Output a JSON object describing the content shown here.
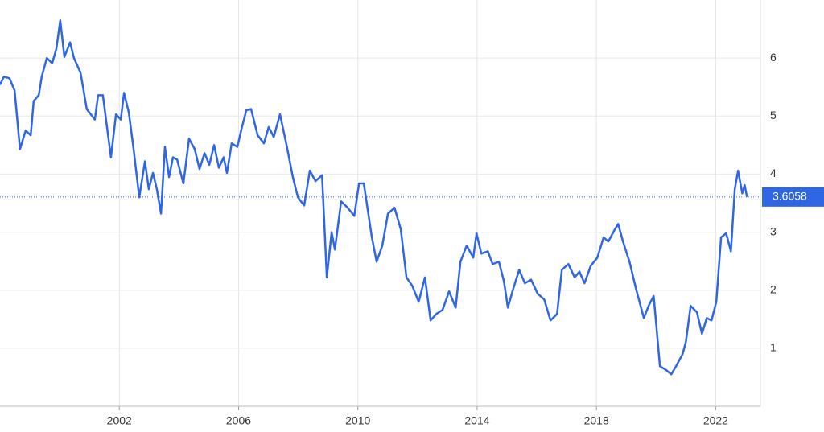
{
  "chart_data": {
    "type": "line",
    "x": [
      1998.0,
      1998.13,
      1998.32,
      1998.49,
      1998.67,
      1998.86,
      1999.03,
      1999.13,
      1999.3,
      1999.4,
      1999.57,
      1999.75,
      1999.89,
      2000.02,
      2000.16,
      2000.35,
      2000.48,
      2000.7,
      2000.91,
      2001.18,
      2001.29,
      2001.45,
      2001.56,
      2001.72,
      2001.89,
      2002.05,
      2002.16,
      2002.32,
      2002.48,
      2002.67,
      2002.86,
      2002.99,
      2003.13,
      2003.26,
      2003.4,
      2003.53,
      2003.67,
      2003.8,
      2003.94,
      2004.15,
      2004.34,
      2004.53,
      2004.69,
      2004.86,
      2005.02,
      2005.18,
      2005.34,
      2005.5,
      2005.61,
      2005.77,
      2005.96,
      2006.1,
      2006.26,
      2006.42,
      2006.64,
      2006.85,
      2007.01,
      2007.18,
      2007.39,
      2007.61,
      2007.82,
      2007.99,
      2008.2,
      2008.39,
      2008.58,
      2008.8,
      2008.96,
      2009.12,
      2009.23,
      2009.44,
      2009.66,
      2009.88,
      2010.04,
      2010.2,
      2010.47,
      2010.63,
      2010.82,
      2011.01,
      2011.23,
      2011.44,
      2011.63,
      2011.82,
      2012.04,
      2012.25,
      2012.44,
      2012.63,
      2012.84,
      2013.06,
      2013.28,
      2013.44,
      2013.65,
      2013.87,
      2013.98,
      2014.14,
      2014.36,
      2014.52,
      2014.73,
      2014.9,
      2015.03,
      2015.22,
      2015.41,
      2015.6,
      2015.81,
      2016.03,
      2016.25,
      2016.46,
      2016.68,
      2016.84,
      2017.06,
      2017.27,
      2017.43,
      2017.6,
      2017.81,
      2018.03,
      2018.24,
      2018.4,
      2018.62,
      2018.73,
      2018.89,
      2019.11,
      2019.32,
      2019.59,
      2019.75,
      2019.92,
      2020.13,
      2020.35,
      2020.51,
      2020.67,
      2020.89,
      2021.0,
      2021.16,
      2021.37,
      2021.54,
      2021.7,
      2021.86,
      2022.02,
      2022.18,
      2022.35,
      2022.51,
      2022.64,
      2022.75,
      2022.89,
      2022.97,
      2023.05
    ],
    "series": [
      {
        "color": "#2f66e3",
        "values": [
          5.54,
          5.68,
          5.65,
          5.44,
          4.43,
          4.75,
          4.67,
          5.26,
          5.36,
          5.68,
          6.0,
          5.91,
          6.16,
          6.65,
          6.02,
          6.27,
          6.0,
          5.75,
          5.12,
          4.94,
          5.36,
          5.36,
          4.92,
          4.29,
          5.03,
          4.94,
          5.4,
          5.06,
          4.43,
          3.6,
          4.22,
          3.74,
          4.02,
          3.74,
          3.32,
          4.47,
          3.95,
          4.29,
          4.25,
          3.84,
          4.61,
          4.43,
          4.09,
          4.36,
          4.16,
          4.5,
          4.11,
          4.29,
          4.02,
          4.53,
          4.47,
          4.78,
          5.1,
          5.12,
          4.67,
          4.53,
          4.81,
          4.64,
          5.03,
          4.5,
          3.95,
          3.6,
          3.46,
          4.06,
          3.88,
          3.98,
          2.22,
          3.0,
          2.7,
          3.53,
          3.42,
          3.28,
          3.84,
          3.84,
          2.91,
          2.49,
          2.77,
          3.32,
          3.42,
          3.05,
          2.22,
          2.08,
          1.8,
          2.22,
          1.48,
          1.59,
          1.66,
          1.98,
          1.7,
          2.49,
          2.77,
          2.56,
          2.98,
          2.63,
          2.67,
          2.45,
          2.49,
          2.15,
          1.7,
          2.04,
          2.35,
          2.12,
          2.18,
          1.94,
          1.84,
          1.48,
          1.59,
          2.35,
          2.45,
          2.22,
          2.32,
          2.12,
          2.42,
          2.56,
          2.91,
          2.84,
          3.05,
          3.14,
          2.84,
          2.49,
          2.04,
          1.52,
          1.73,
          1.9,
          0.69,
          0.62,
          0.55,
          0.69,
          0.9,
          1.11,
          1.73,
          1.62,
          1.25,
          1.52,
          1.48,
          1.8,
          2.91,
          2.98,
          2.67,
          3.74,
          4.06,
          3.67,
          3.81,
          3.6058
        ]
      }
    ],
    "xlim": [
      1998,
      2023.5
    ],
    "xticks": [
      2002,
      2006,
      2010,
      2014,
      2018,
      2022
    ],
    "ylim": [
      0,
      7
    ],
    "yticks": [
      1,
      2,
      3,
      4,
      5,
      6
    ],
    "grid": true
  }
}
